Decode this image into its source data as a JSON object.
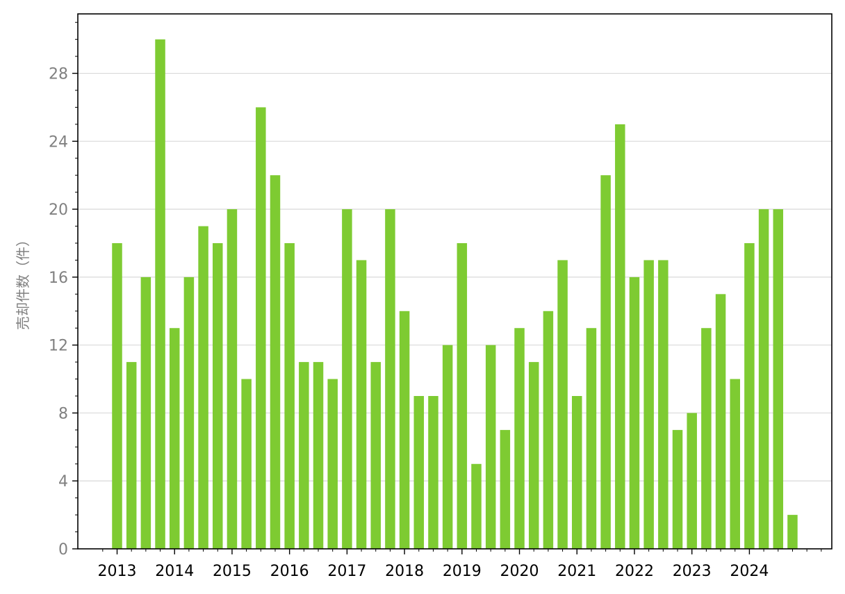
{
  "chart_data": {
    "type": "bar",
    "title": "",
    "xlabel": "",
    "ylabel": "売却件数（件）",
    "ylim": [
      0,
      31.5
    ],
    "yticks": [
      0,
      4,
      8,
      12,
      16,
      20,
      24,
      28
    ],
    "ytick_labels": [
      "0",
      "4",
      "8",
      "12",
      "16",
      "20",
      "24",
      "28"
    ],
    "x_year_labels": [
      "2013",
      "2014",
      "2015",
      "2016",
      "2017",
      "2018",
      "2019",
      "2020",
      "2021",
      "2022",
      "2023",
      "2024"
    ],
    "grid": "y-major",
    "legend": "none",
    "colors": {
      "bar": "#7ecb32",
      "grid": "#d9d9d9",
      "axis": "#000000",
      "ytick_text": "#808080"
    },
    "categories": [
      "2013-Q1",
      "2013-Q2",
      "2013-Q3",
      "2013-Q4",
      "2014-Q1",
      "2014-Q2",
      "2014-Q3",
      "2014-Q4",
      "2015-Q1",
      "2015-Q2",
      "2015-Q3",
      "2015-Q4",
      "2016-Q1",
      "2016-Q2",
      "2016-Q3",
      "2016-Q4",
      "2017-Q1",
      "2017-Q2",
      "2017-Q3",
      "2017-Q4",
      "2018-Q1",
      "2018-Q2",
      "2018-Q3",
      "2018-Q4",
      "2019-Q1",
      "2019-Q2",
      "2019-Q3",
      "2019-Q4",
      "2020-Q1",
      "2020-Q2",
      "2020-Q3",
      "2020-Q4",
      "2021-Q1",
      "2021-Q2",
      "2021-Q3",
      "2021-Q4",
      "2022-Q1",
      "2022-Q2",
      "2022-Q3",
      "2022-Q4",
      "2023-Q1",
      "2023-Q2",
      "2023-Q3",
      "2023-Q4",
      "2024-Q1",
      "2024-Q2",
      "2024-Q3",
      "2024-Q4"
    ],
    "values": [
      18,
      11,
      16,
      30,
      13,
      16,
      19,
      18,
      20,
      10,
      26,
      22,
      18,
      11,
      11,
      10,
      20,
      17,
      11,
      20,
      14,
      9,
      9,
      12,
      18,
      5,
      12,
      7,
      13,
      11,
      14,
      17,
      9,
      13,
      22,
      25,
      16,
      17,
      17,
      7,
      8,
      13,
      15,
      10,
      18,
      20,
      20,
      2
    ]
  }
}
